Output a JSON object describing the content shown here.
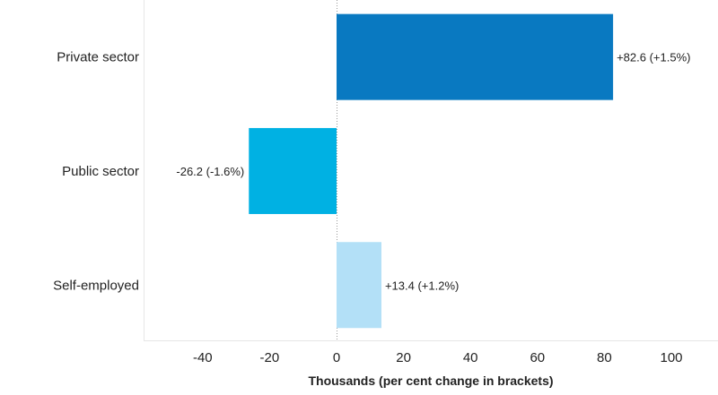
{
  "chart_data": {
    "type": "bar",
    "orientation": "horizontal",
    "categories": [
      "Private sector",
      "Public sector",
      "Self-employed"
    ],
    "values": [
      82.6,
      -26.2,
      13.4
    ],
    "value_labels": [
      "+82.6 (+1.5%)",
      "-26.2 (-1.6%)",
      "+13.4 (+1.2%)"
    ],
    "bar_colors": [
      "#0979c1",
      "#00b1e3",
      "#b3e0f7"
    ],
    "xlabel": "Thousands (per cent change in brackets)",
    "ylabel": "",
    "xlim": [
      -58,
      111
    ],
    "x_ticks": [
      -40,
      -20,
      0,
      20,
      40,
      60,
      80,
      100
    ],
    "x_tick_labels": [
      "-40",
      "-20",
      "0",
      "20",
      "40",
      "60",
      "80",
      "100"
    ],
    "grid": false,
    "zero_line": "dotted",
    "legend": "none"
  }
}
